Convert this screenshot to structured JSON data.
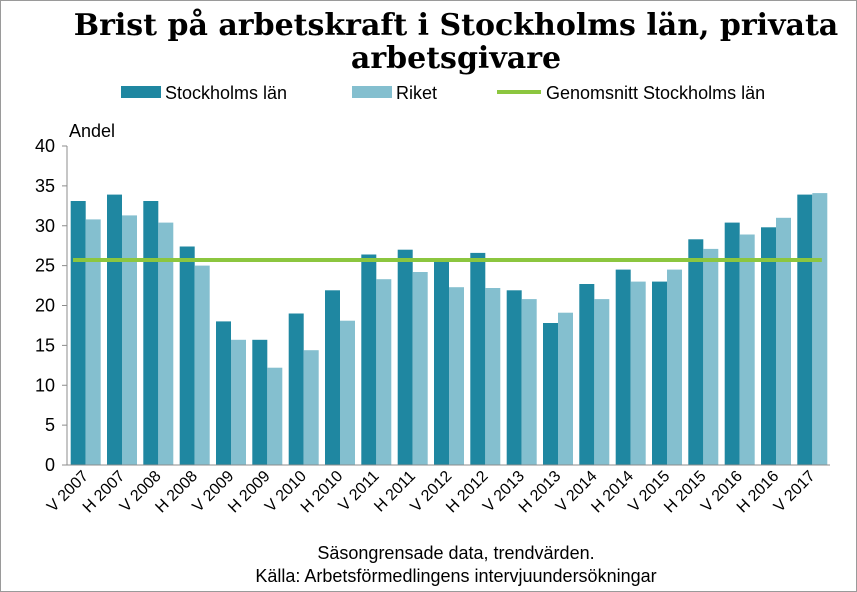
{
  "chart_data": {
    "type": "bar",
    "title_lines": [
      "Brist på arbetskraft i Stockholms län, privata",
      "arbetsgivare"
    ],
    "ylabel": "Andel",
    "ylim": [
      0,
      40
    ],
    "yticks": [
      0,
      5,
      10,
      15,
      20,
      25,
      30,
      35,
      40
    ],
    "grid": false,
    "legend_position": "top",
    "categories": [
      "V 2007",
      "H 2007",
      "V 2008",
      "H 2008",
      "V 2009",
      "H 2009",
      "V 2010",
      "H 2010",
      "V 2011",
      "H 2011",
      "V 2012",
      "H 2012",
      "V 2013",
      "H 2013",
      "V 2014",
      "H 2014",
      "V 2015",
      "H 2015",
      "V 2016",
      "H 2016",
      "V 2017"
    ],
    "series": [
      {
        "name": "Stockholms län",
        "color": "#1f87a1",
        "values": [
          33.1,
          33.9,
          33.1,
          27.4,
          18.0,
          15.7,
          19.0,
          21.9,
          26.4,
          27.0,
          25.7,
          26.6,
          21.9,
          17.8,
          22.7,
          24.5,
          23.0,
          28.3,
          30.4,
          29.8,
          33.9
        ]
      },
      {
        "name": "Riket",
        "color": "#84bfcf",
        "values": [
          30.8,
          31.3,
          30.4,
          25.0,
          15.7,
          12.2,
          14.4,
          18.1,
          23.3,
          24.2,
          22.3,
          22.2,
          20.8,
          19.1,
          20.8,
          23.0,
          24.5,
          27.1,
          28.9,
          31.0,
          34.1
        ]
      }
    ],
    "reference_line": {
      "name": "Genomsnitt Stockholms län",
      "value": 25.7,
      "color": "#8cc63f"
    },
    "notes": [
      "Säsongrensade data, trendvärden.",
      "Källa: Arbetsförmedlingens  intervjuundersökningar"
    ]
  }
}
